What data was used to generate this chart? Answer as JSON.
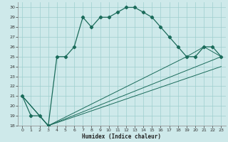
{
  "xlabel": "Humidex (Indice chaleur)",
  "bg_color": "#cee9ea",
  "grid_color": "#9ecece",
  "line_color": "#1a6b5a",
  "xlim": [
    -0.5,
    23.5
  ],
  "ylim": [
    18,
    30.5
  ],
  "xticks": [
    0,
    1,
    2,
    3,
    4,
    5,
    6,
    7,
    8,
    9,
    10,
    11,
    12,
    13,
    14,
    15,
    16,
    17,
    18,
    19,
    20,
    21,
    22,
    23
  ],
  "yticks": [
    18,
    19,
    20,
    21,
    22,
    23,
    24,
    25,
    26,
    27,
    28,
    29,
    30
  ],
  "series1_x": [
    0,
    1,
    2,
    3,
    4,
    5,
    6,
    7,
    8,
    9,
    10,
    11,
    12,
    13,
    14,
    15,
    16,
    17,
    18,
    19,
    20,
    21,
    22,
    23
  ],
  "series1_y": [
    21,
    19,
    19,
    18,
    25,
    25,
    26,
    29,
    28,
    29,
    29,
    29.5,
    30,
    30,
    29.5,
    29,
    28,
    27,
    26,
    25,
    25,
    26,
    26,
    25
  ],
  "series2_x": [
    0,
    3,
    23
  ],
  "series2_y": [
    21,
    18,
    25
  ],
  "series3_x": [
    0,
    3,
    23
  ],
  "series3_y": [
    21,
    18,
    24
  ],
  "series4_x": [
    0,
    3,
    19,
    21,
    23
  ],
  "series4_y": [
    21,
    18,
    25,
    26,
    25
  ]
}
